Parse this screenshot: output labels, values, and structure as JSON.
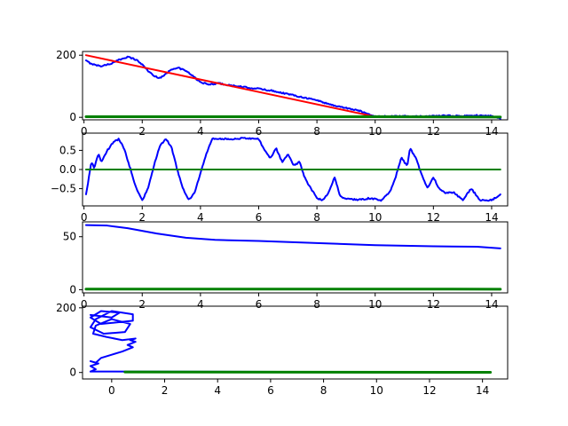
{
  "figure": {
    "background": "#ffffff"
  },
  "chart_data": [
    {
      "type": "line",
      "title": "",
      "xlabel": "",
      "ylabel": "",
      "xlim": [
        -0.05,
        14.55
      ],
      "ylim": [
        -8,
        212
      ],
      "xticks": [
        0,
        2,
        4,
        6,
        8,
        10,
        12,
        14
      ],
      "yticks": [
        0,
        200
      ],
      "grid": false,
      "series": [
        {
          "color": "#0000ff",
          "kind": "noisy_oscillation",
          "x_range": [
            0.07,
            14.3
          ],
          "points": [
            [
              0.07,
              182
            ],
            [
              0.2,
              175
            ],
            [
              0.4,
              168
            ],
            [
              0.6,
              165
            ],
            [
              0.8,
              170
            ],
            [
              1.0,
              175
            ],
            [
              1.2,
              185
            ],
            [
              1.5,
              195
            ],
            [
              1.8,
              185
            ],
            [
              2.0,
              170
            ],
            [
              2.2,
              150
            ],
            [
              2.4,
              133
            ],
            [
              2.6,
              127
            ],
            [
              2.8,
              138
            ],
            [
              3.0,
              155
            ],
            [
              3.2,
              160
            ],
            [
              3.5,
              150
            ],
            [
              3.8,
              128
            ],
            [
              4.0,
              113
            ],
            [
              4.3,
              105
            ],
            [
              4.6,
              110
            ],
            [
              5.0,
              103
            ],
            [
              5.5,
              97
            ],
            [
              6.0,
              92
            ],
            [
              6.5,
              85
            ],
            [
              7.0,
              75
            ],
            [
              7.5,
              65
            ],
            [
              8.0,
              55
            ],
            [
              8.5,
              40
            ],
            [
              9.0,
              30
            ],
            [
              9.5,
              20
            ],
            [
              10.0,
              3
            ],
            [
              10.5,
              3
            ],
            [
              11.0,
              3
            ],
            [
              11.5,
              3
            ],
            [
              12.0,
              4
            ],
            [
              12.5,
              5
            ],
            [
              13.0,
              4
            ],
            [
              13.5,
              6
            ],
            [
              14.0,
              4
            ],
            [
              14.3,
              -3
            ]
          ]
        },
        {
          "color": "#ff0000",
          "kind": "line",
          "points": [
            [
              0.07,
              200
            ],
            [
              10.0,
              2
            ],
            [
              14.3,
              2
            ]
          ]
        },
        {
          "color": "#008000",
          "kind": "line",
          "points": [
            [
              0.07,
              2
            ],
            [
              10.0,
              2
            ],
            [
              14.3,
              1
            ]
          ]
        }
      ]
    },
    {
      "type": "line",
      "title": "",
      "xlabel": "",
      "ylabel": "",
      "xlim": [
        -0.05,
        14.55
      ],
      "ylim": [
        -0.95,
        0.95
      ],
      "xticks": [
        0,
        2,
        4,
        6,
        8,
        10,
        12,
        14
      ],
      "yticks": [
        -0.5,
        0.0,
        0.5
      ],
      "ytick_labels": [
        "−0.5",
        "0.0",
        "0.5"
      ],
      "grid": false,
      "series": [
        {
          "color": "#0000ff",
          "kind": "noisy_oscillation",
          "x_range": [
            0.07,
            14.3
          ],
          "points": [
            [
              0.07,
              -0.65
            ],
            [
              0.15,
              -0.3
            ],
            [
              0.25,
              0.2
            ],
            [
              0.35,
              0.05
            ],
            [
              0.5,
              0.4
            ],
            [
              0.6,
              0.2
            ],
            [
              0.8,
              0.5
            ],
            [
              1.0,
              0.7
            ],
            [
              1.2,
              0.8
            ],
            [
              1.4,
              0.5
            ],
            [
              1.6,
              0.0
            ],
            [
              1.8,
              -0.5
            ],
            [
              2.0,
              -0.8
            ],
            [
              2.2,
              -0.5
            ],
            [
              2.4,
              0.1
            ],
            [
              2.6,
              0.6
            ],
            [
              2.8,
              0.8
            ],
            [
              3.0,
              0.6
            ],
            [
              3.2,
              0.0
            ],
            [
              3.4,
              -0.5
            ],
            [
              3.6,
              -0.8
            ],
            [
              3.8,
              -0.6
            ],
            [
              4.0,
              -0.1
            ],
            [
              4.2,
              0.4
            ],
            [
              4.4,
              0.8
            ],
            [
              4.8,
              0.8
            ],
            [
              5.2,
              0.8
            ],
            [
              5.6,
              0.82
            ],
            [
              6.0,
              0.8
            ],
            [
              6.2,
              0.5
            ],
            [
              6.4,
              0.3
            ],
            [
              6.6,
              0.55
            ],
            [
              6.8,
              0.2
            ],
            [
              7.0,
              0.4
            ],
            [
              7.2,
              0.1
            ],
            [
              7.4,
              0.2
            ],
            [
              7.6,
              -0.25
            ],
            [
              7.8,
              -0.5
            ],
            [
              8.0,
              -0.75
            ],
            [
              8.2,
              -0.8
            ],
            [
              8.4,
              -0.6
            ],
            [
              8.6,
              -0.2
            ],
            [
              8.8,
              -0.7
            ],
            [
              9.0,
              -0.75
            ],
            [
              9.4,
              -0.8
            ],
            [
              9.8,
              -0.75
            ],
            [
              10.2,
              -0.8
            ],
            [
              10.5,
              -0.6
            ],
            [
              10.7,
              -0.2
            ],
            [
              10.9,
              0.3
            ],
            [
              11.1,
              0.1
            ],
            [
              11.2,
              0.55
            ],
            [
              11.4,
              0.3
            ],
            [
              11.6,
              -0.15
            ],
            [
              11.8,
              -0.5
            ],
            [
              12.0,
              -0.2
            ],
            [
              12.2,
              -0.5
            ],
            [
              12.4,
              -0.6
            ],
            [
              12.7,
              -0.6
            ],
            [
              13.0,
              -0.8
            ],
            [
              13.3,
              -0.5
            ],
            [
              13.6,
              -0.8
            ],
            [
              14.0,
              -0.8
            ],
            [
              14.3,
              -0.65
            ]
          ]
        },
        {
          "color": "#008000",
          "kind": "line",
          "points": [
            [
              0.07,
              0.0
            ],
            [
              14.3,
              0.0
            ]
          ]
        }
      ]
    },
    {
      "type": "line",
      "title": "",
      "xlabel": "",
      "ylabel": "",
      "xlim": [
        -0.05,
        14.55
      ],
      "ylim": [
        -3,
        64
      ],
      "xticks": [
        0,
        2,
        4,
        6,
        8,
        10,
        12,
        14
      ],
      "yticks": [
        0,
        50
      ],
      "grid": false,
      "series": [
        {
          "color": "#0000ff",
          "kind": "line",
          "points": [
            [
              0.07,
              61
            ],
            [
              0.8,
              60.5
            ],
            [
              1.5,
              58
            ],
            [
              2.5,
              53
            ],
            [
              3.5,
              49
            ],
            [
              4.5,
              47
            ],
            [
              6,
              46
            ],
            [
              8,
              44
            ],
            [
              10,
              42
            ],
            [
              12,
              41
            ],
            [
              13.5,
              40.5
            ],
            [
              14.3,
              39
            ]
          ]
        },
        {
          "color": "#008000",
          "kind": "line",
          "points": [
            [
              0.07,
              0.6
            ],
            [
              14.3,
              0.5
            ]
          ]
        }
      ]
    },
    {
      "type": "line",
      "title": "",
      "xlabel": "",
      "ylabel": "",
      "xlim": [
        -1.1,
        14.95
      ],
      "ylim": [
        -20,
        205
      ],
      "xticks": [
        0,
        2,
        4,
        6,
        8,
        10,
        12,
        14
      ],
      "yticks": [
        0,
        200
      ],
      "grid": false,
      "series": [
        {
          "color": "#0000ff",
          "kind": "loop_path",
          "points": [
            [
              -0.8,
              3
            ],
            [
              -0.6,
              10
            ],
            [
              -0.8,
              20
            ],
            [
              -0.5,
              28
            ],
            [
              -0.8,
              35
            ],
            [
              -0.6,
              30
            ],
            [
              -0.4,
              45
            ],
            [
              0.0,
              55
            ],
            [
              0.4,
              65
            ],
            [
              0.8,
              78
            ],
            [
              0.6,
              85
            ],
            [
              0.9,
              95
            ],
            [
              0.7,
              100
            ],
            [
              0.9,
              105
            ],
            [
              0.4,
              100
            ],
            [
              -0.2,
              110
            ],
            [
              -0.7,
              120
            ],
            [
              -0.6,
              145
            ],
            [
              0.0,
              165
            ],
            [
              0.7,
              150
            ],
            [
              0.5,
              125
            ],
            [
              -0.3,
              120
            ],
            [
              -0.8,
              140
            ],
            [
              -0.6,
              165
            ],
            [
              0.0,
              190
            ],
            [
              0.8,
              180
            ],
            [
              0.8,
              160
            ],
            [
              -0.4,
              150
            ],
            [
              -0.8,
              170
            ],
            [
              -0.4,
              190
            ],
            [
              0.3,
              185
            ],
            [
              0.0,
              170
            ],
            [
              -0.8,
              178
            ]
          ]
        },
        {
          "color": "#0000ff",
          "kind": "line",
          "points": [
            [
              -0.8,
              3
            ],
            [
              14.3,
              1
            ]
          ]
        },
        {
          "color": "#008000",
          "kind": "line",
          "points": [
            [
              0.5,
              1.5
            ],
            [
              14.3,
              0.5
            ]
          ]
        }
      ]
    }
  ]
}
